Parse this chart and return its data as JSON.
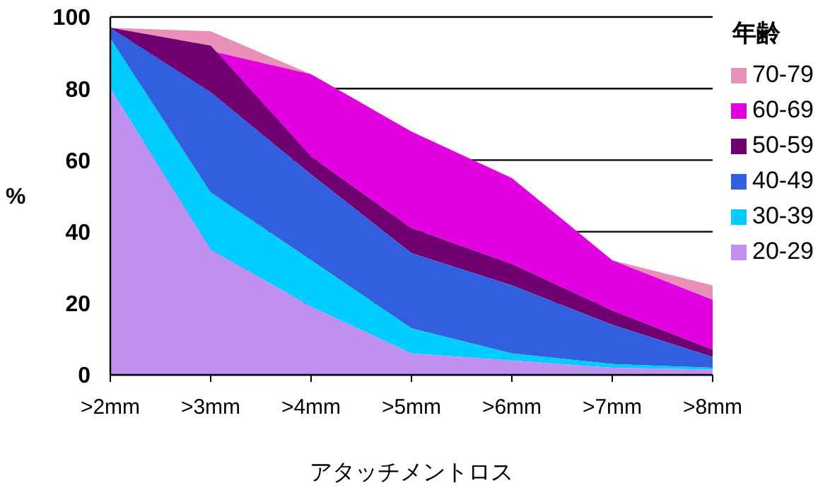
{
  "chart_data": {
    "type": "area",
    "xlabel": "アタッチメントロス",
    "ylabel": "%",
    "legend_title": "年齢",
    "categories": [
      ">2mm",
      ">3mm",
      ">4mm",
      ">5mm",
      ">6mm",
      ">7mm",
      ">8mm"
    ],
    "series": [
      {
        "name": "70-79",
        "color": "#e890b8",
        "values": [
          97,
          96,
          84,
          68,
          55,
          32,
          25
        ]
      },
      {
        "name": "60-69",
        "color": "#e000e0",
        "values": [
          97,
          null,
          84,
          68,
          55,
          32,
          21
        ]
      },
      {
        "name": "50-59",
        "color": "#700070",
        "values": [
          97,
          92,
          61,
          41,
          31,
          18,
          7
        ]
      },
      {
        "name": "40-49",
        "color": "#3060e0",
        "values": [
          97,
          79,
          56,
          34,
          25,
          14,
          5
        ]
      },
      {
        "name": "30-39",
        "color": "#00ccff",
        "values": [
          94,
          51,
          32,
          13,
          6,
          3,
          2
        ]
      },
      {
        "name": "20-29",
        "color": "#c090f0",
        "values": [
          80,
          35,
          19,
          6,
          4,
          2,
          1.5
        ]
      }
    ],
    "ylim": [
      0,
      100
    ],
    "yticks": [
      0,
      20,
      40,
      60,
      80,
      100
    ],
    "grid": "y",
    "legend": "right"
  }
}
